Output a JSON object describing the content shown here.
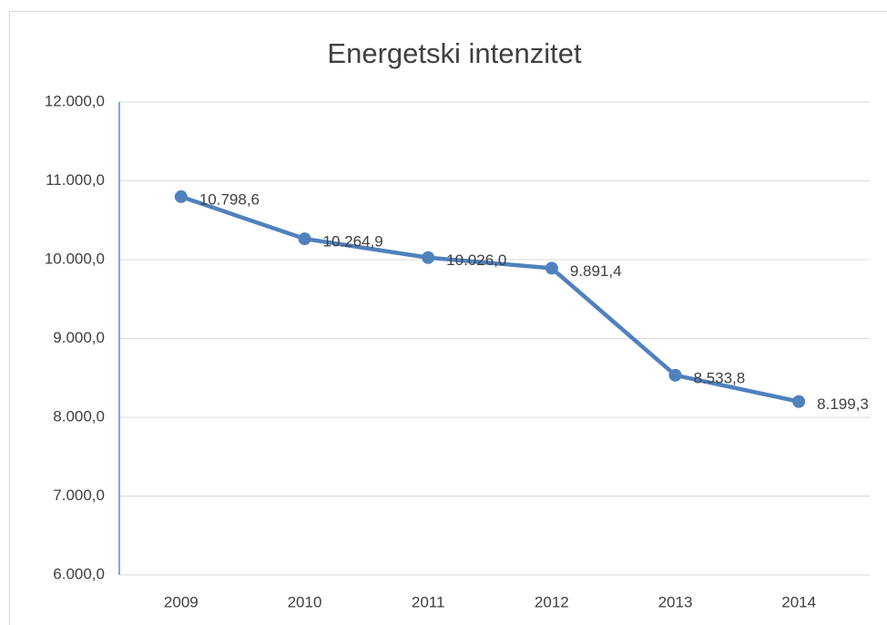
{
  "chart_data": {
    "type": "line",
    "title": "Energetski intenzitet",
    "categories": [
      "2009",
      "2010",
      "2011",
      "2012",
      "2013",
      "2014"
    ],
    "series": [
      {
        "name": "Energetski intenzitet",
        "color": "#4f81bd",
        "values": [
          10798.6,
          10264.9,
          10026.0,
          9891.4,
          8533.8,
          8199.3
        ],
        "value_labels": [
          "10.798,6",
          "10.264,9",
          "10.026,0",
          "9.891,4",
          "8.533,8",
          "8.199,3"
        ]
      }
    ],
    "ylim": [
      6000,
      12000
    ],
    "yticks": [
      {
        "value": 6000,
        "label": "6.000,0"
      },
      {
        "value": 7000,
        "label": "7.000,0"
      },
      {
        "value": 8000,
        "label": "8.000,0"
      },
      {
        "value": 9000,
        "label": "9.000,0"
      },
      {
        "value": 10000,
        "label": "10.000,0"
      },
      {
        "value": 11000,
        "label": "11.000,0"
      },
      {
        "value": 12000,
        "label": "12.000,0"
      }
    ],
    "grid": true
  }
}
